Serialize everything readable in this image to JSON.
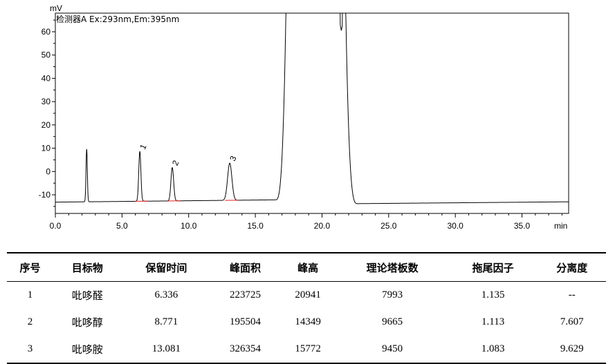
{
  "chart_data": {
    "type": "line",
    "detector_label": "检测器A Ex:293nm,Em:395nm",
    "ylabel": "mV",
    "xlabel": "min",
    "xlim": [
      0,
      38.5
    ],
    "ylim": [
      -18,
      68
    ],
    "x_ticks": [
      "0.0",
      "5.0",
      "10.0",
      "15.0",
      "20.0",
      "25.0",
      "30.0",
      "35.0"
    ],
    "y_ticks": [
      "-10",
      "0",
      "10",
      "20",
      "30",
      "40",
      "50",
      "60"
    ],
    "baseline": -13,
    "peaks": [
      {
        "x": 2.35,
        "height": 9.6,
        "width": 0.05,
        "label": ""
      },
      {
        "x": 6.336,
        "height": 8.6,
        "width": 0.08,
        "label": "1"
      },
      {
        "x": 8.771,
        "height": 1.7,
        "width": 0.1,
        "label": "2"
      },
      {
        "x": 13.081,
        "height": 3.6,
        "width": 0.16,
        "label": "3"
      }
    ],
    "solvent_front": {
      "start": 17.1,
      "end": 21.8,
      "top": 68,
      "dip_x": 21.45,
      "dip_y": 60.5,
      "end_level": -13.8
    }
  },
  "table": {
    "headers": [
      "序号",
      "目标物",
      "保留时间",
      "峰面积",
      "峰高",
      "理论塔板数",
      "拖尾因子",
      "分离度"
    ],
    "rows": [
      [
        "1",
        "吡哆醛",
        "6.336",
        "223725",
        "20941",
        "7993",
        "1.135",
        "--"
      ],
      [
        "2",
        "吡哆醇",
        "8.771",
        "195504",
        "14349",
        "9665",
        "1.113",
        "7.607"
      ],
      [
        "3",
        "吡哆胺",
        "13.081",
        "326354",
        "15772",
        "9450",
        "1.083",
        "9.629"
      ]
    ]
  }
}
